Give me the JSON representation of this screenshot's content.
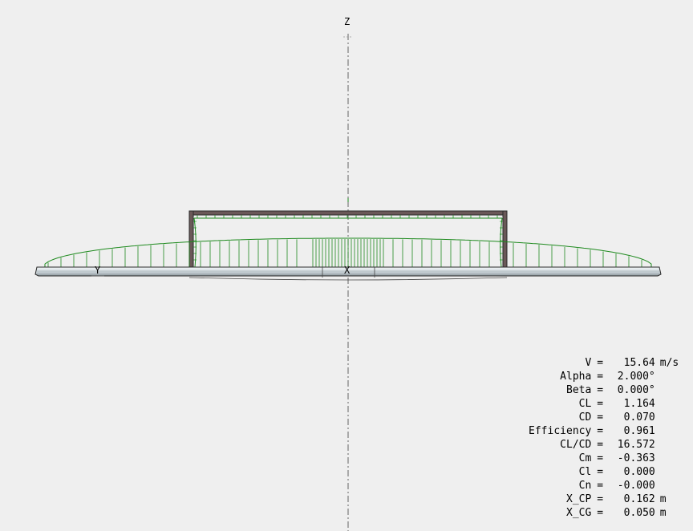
{
  "viewport": {
    "axes": {
      "z_label": "Z",
      "y_label": "Y",
      "x_label": "X"
    },
    "colors": {
      "background": "#efefef",
      "lift_distribution": "#1e8a1e",
      "wing_surface": "#d8dfe3",
      "wing_edge": "#2a2a2a",
      "fin_frame": "#5a4a4a"
    }
  },
  "results": [
    {
      "label": "V",
      "value": "15.64",
      "unit": "m/s"
    },
    {
      "label": "Alpha",
      "value": "2.000°",
      "unit": ""
    },
    {
      "label": "Beta",
      "value": "0.000°",
      "unit": ""
    },
    {
      "label": "CL",
      "value": "1.164",
      "unit": ""
    },
    {
      "label": "CD",
      "value": "0.070",
      "unit": ""
    },
    {
      "label": "Efficiency",
      "value": "0.961",
      "unit": ""
    },
    {
      "label": "CL/CD",
      "value": "16.572",
      "unit": ""
    },
    {
      "label": "Cm",
      "value": "-0.363",
      "unit": ""
    },
    {
      "label": "Cl",
      "value": "0.000",
      "unit": ""
    },
    {
      "label": "Cn",
      "value": "-0.000",
      "unit": ""
    },
    {
      "label": "X_CP",
      "value": "0.162",
      "unit": "m"
    },
    {
      "label": "X_CG",
      "value": "0.050",
      "unit": "m"
    }
  ]
}
